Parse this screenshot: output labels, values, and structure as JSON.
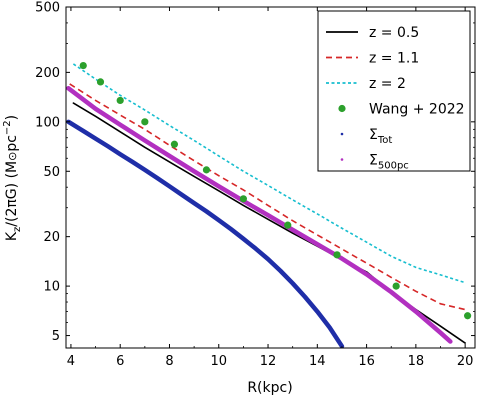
{
  "chart_data": {
    "type": "line",
    "xlabel": "R(kpc)",
    "ylabel_parts": {
      "k": "K",
      "sub": "z",
      "mid": "/(2πG) (M",
      "sun": "⊙",
      "unit": "pc",
      "exp": "−2",
      "end": ")"
    },
    "xlim": [
      3.8,
      20.4
    ],
    "ylim": [
      4.2,
      500
    ],
    "y_scale": "log",
    "grid": false,
    "legend_position": "top-right",
    "x_ticks": [
      "4",
      "6",
      "8",
      "10",
      "12",
      "14",
      "16",
      "18",
      "20"
    ],
    "y_ticks": [
      "5",
      "10",
      "20",
      "50",
      "100",
      "200",
      "500"
    ],
    "series": [
      {
        "name": "z = 0.5",
        "style": "solid",
        "color": "#000000",
        "x": [
          4.1,
          5,
          6,
          7,
          8,
          9,
          10,
          11,
          12,
          13,
          14,
          15,
          16,
          17,
          18,
          19,
          20
        ],
        "y": [
          130,
          108,
          87,
          70,
          57,
          46.5,
          38,
          31,
          25.5,
          21,
          17.5,
          14.5,
          12.2,
          9.2,
          7.2,
          5.7,
          4.5
        ]
      },
      {
        "name": "z = 1.1",
        "style": "dashed",
        "color": "#d62728",
        "x": [
          3.95,
          5,
          6,
          7,
          8,
          9,
          10,
          11,
          12,
          13,
          14,
          15,
          16,
          17,
          18,
          19,
          20
        ],
        "y": [
          170,
          135,
          110,
          90,
          72,
          58,
          47,
          38.5,
          31,
          25,
          20.5,
          16.8,
          13.8,
          11.3,
          9.3,
          7.8,
          7.2
        ]
      },
      {
        "name": "z = 2",
        "style": "dotted",
        "color": "#17becf",
        "x": [
          4.1,
          5,
          6,
          7,
          8,
          9,
          10,
          11,
          12,
          13,
          14,
          15,
          16,
          17,
          18,
          19,
          20
        ],
        "y": [
          225,
          182,
          145,
          118,
          95,
          77,
          62,
          50,
          41,
          33.5,
          27.5,
          22.5,
          18.5,
          15.2,
          13,
          11.7,
          10.5
        ]
      },
      {
        "name": "Σ_Tot",
        "style": "thick",
        "color": "#1f2ea8",
        "x": [
          3.9,
          4.5,
          5,
          5.5,
          6,
          6.5,
          7,
          7.5,
          8,
          8.5,
          9,
          9.5,
          10,
          10.5,
          11,
          11.5,
          12,
          12.5,
          13,
          13.5,
          14,
          14.5,
          15
        ],
        "y": [
          100,
          88,
          79,
          71,
          63.5,
          57,
          51,
          45.5,
          40.5,
          36,
          32,
          28.5,
          25.2,
          22.2,
          19.4,
          16.9,
          14.6,
          12.4,
          10.4,
          8.6,
          7,
          5.6,
          4.3
        ]
      },
      {
        "name": "Σ_500pc",
        "style": "thick",
        "color": "#b230c0",
        "x": [
          3.9,
          5,
          6,
          7,
          8,
          9,
          10,
          11,
          12,
          13,
          14,
          15,
          16,
          17,
          18,
          19,
          19.4
        ],
        "y": [
          160,
          120,
          96,
          77,
          62,
          50,
          40.5,
          33,
          27,
          22,
          18,
          14.7,
          11.8,
          9.2,
          7,
          5.2,
          4.6
        ]
      },
      {
        "name": "Wang + 2022",
        "style": "markers",
        "color": "#2ca02c",
        "x": [
          4.5,
          5.2,
          6.0,
          7.0,
          8.2,
          9.5,
          11.0,
          12.8,
          14.8,
          17.2,
          20.1
        ],
        "y": [
          220,
          175,
          135,
          100,
          73,
          51,
          34,
          23.5,
          15.5,
          10,
          6.6
        ]
      }
    ],
    "legend": [
      {
        "label": "z = 0.5",
        "kind": "line-solid",
        "color": "#000000"
      },
      {
        "label": "z = 1.1",
        "kind": "line-dashed",
        "color": "#d62728"
      },
      {
        "label": "z = 2",
        "kind": "line-dotted",
        "color": "#17becf"
      },
      {
        "label": "Wang + 2022",
        "kind": "marker-big",
        "color": "#2ca02c"
      },
      {
        "label": "Σ",
        "sub": "Tot",
        "kind": "marker-small",
        "color": "#1f2ea8"
      },
      {
        "label": "Σ",
        "sub": "500pc",
        "kind": "marker-small",
        "color": "#b230c0"
      }
    ]
  }
}
